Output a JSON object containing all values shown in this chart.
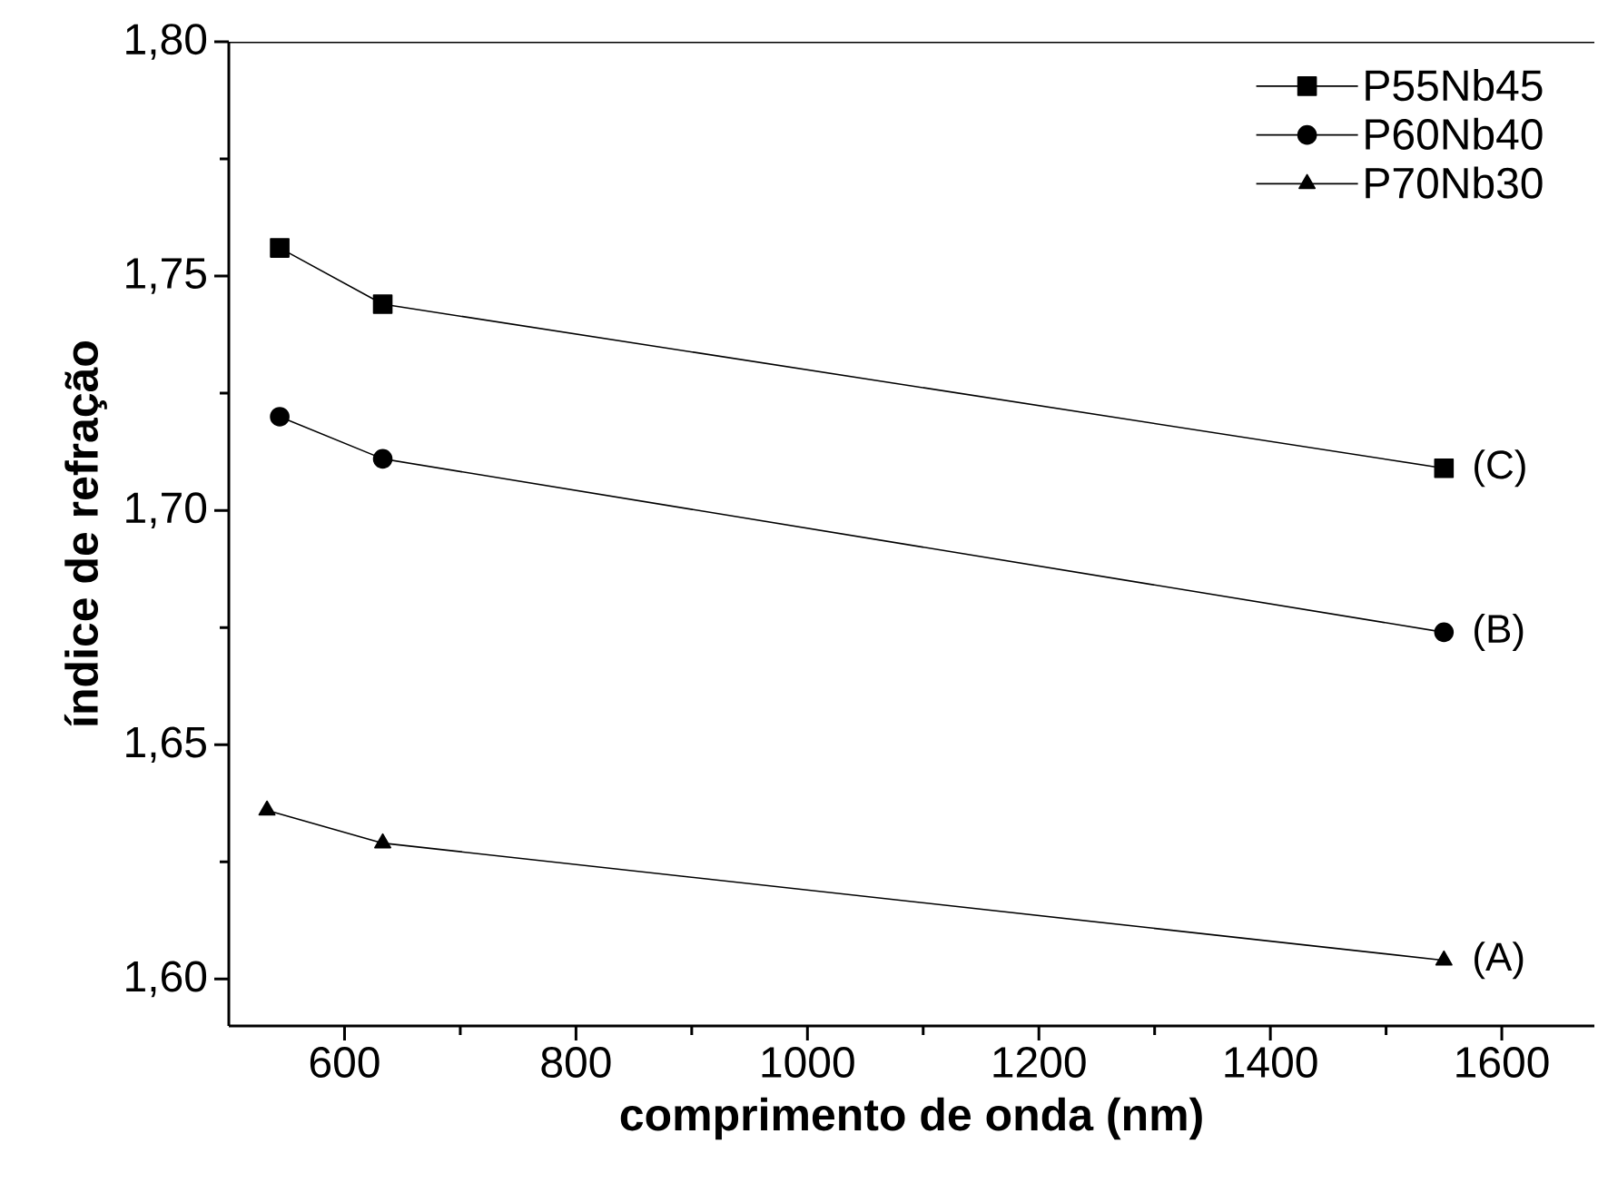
{
  "chart_data": {
    "type": "line",
    "xlabel": "comprimento de onda (nm)",
    "ylabel": "índice de refração",
    "xlim": [
      500,
      1680
    ],
    "ylim": [
      1.59,
      1.8
    ],
    "xticks": [
      600,
      800,
      1000,
      1200,
      1400,
      1600
    ],
    "yticks": [
      {
        "value": 1.6,
        "label": "1,60"
      },
      {
        "value": 1.65,
        "label": "1,65"
      },
      {
        "value": 1.7,
        "label": "1,70"
      },
      {
        "value": 1.75,
        "label": "1,75"
      },
      {
        "value": 1.8,
        "label": "1,80"
      }
    ],
    "grid": false,
    "legend": "top right",
    "line_style": "solid",
    "series": [
      {
        "name": "P55Nb45",
        "color": "#000000",
        "marker": "square",
        "x": [
          544,
          633,
          1550
        ],
        "values": [
          1.756,
          1.744,
          1.709
        ]
      },
      {
        "name": "P60Nb40",
        "color": "#000000",
        "marker": "circle",
        "x": [
          544,
          633,
          1550
        ],
        "values": [
          1.72,
          1.711,
          1.674
        ]
      },
      {
        "name": "P70Nb30",
        "color": "#000000",
        "marker": "triangle",
        "x": [
          533,
          633,
          1550
        ],
        "values": [
          1.636,
          1.629,
          1.604
        ]
      }
    ],
    "annotations": [
      "(C)",
      "(B)",
      "(A)"
    ]
  }
}
